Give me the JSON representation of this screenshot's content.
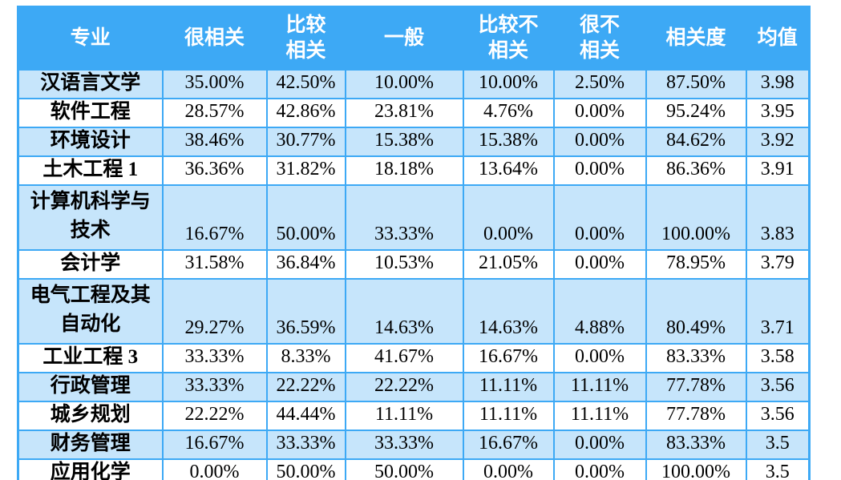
{
  "table": {
    "columns": [
      "专业",
      "很相关",
      "比较\n相关",
      "一般",
      "比较不\n相关",
      "很不\n相关",
      "相关度",
      "均值"
    ],
    "rows": [
      {
        "major": "汉语言文学",
        "values": [
          "35.00%",
          "42.50%",
          "10.00%",
          "10.00%",
          "2.50%",
          "87.50%",
          "3.98"
        ]
      },
      {
        "major": "软件工程",
        "values": [
          "28.57%",
          "42.86%",
          "23.81%",
          "4.76%",
          "0.00%",
          "95.24%",
          "3.95"
        ]
      },
      {
        "major": "环境设计",
        "values": [
          "38.46%",
          "30.77%",
          "15.38%",
          "15.38%",
          "0.00%",
          "84.62%",
          "3.92"
        ]
      },
      {
        "major": "土木工程 1",
        "values": [
          "36.36%",
          "31.82%",
          "18.18%",
          "13.64%",
          "0.00%",
          "86.36%",
          "3.91"
        ]
      },
      {
        "major": "计算机科学与技术",
        "values": [
          "16.67%",
          "50.00%",
          "33.33%",
          "0.00%",
          "0.00%",
          "100.00%",
          "3.83"
        ]
      },
      {
        "major": "会计学",
        "values": [
          "31.58%",
          "36.84%",
          "10.53%",
          "21.05%",
          "0.00%",
          "78.95%",
          "3.79"
        ]
      },
      {
        "major": "电气工程及其自动化",
        "values": [
          "29.27%",
          "36.59%",
          "14.63%",
          "14.63%",
          "4.88%",
          "80.49%",
          "3.71"
        ]
      },
      {
        "major": "工业工程 3",
        "values": [
          "33.33%",
          "8.33%",
          "41.67%",
          "16.67%",
          "0.00%",
          "83.33%",
          "3.58"
        ]
      },
      {
        "major": "行政管理",
        "values": [
          "33.33%",
          "22.22%",
          "22.22%",
          "11.11%",
          "11.11%",
          "77.78%",
          "3.56"
        ]
      },
      {
        "major": "城乡规划",
        "values": [
          "22.22%",
          "44.44%",
          "11.11%",
          "11.11%",
          "11.11%",
          "77.78%",
          "3.56"
        ]
      },
      {
        "major": "财务管理",
        "values": [
          "16.67%",
          "33.33%",
          "33.33%",
          "16.67%",
          "0.00%",
          "83.33%",
          "3.5"
        ]
      },
      {
        "major": "应用化学",
        "values": [
          "0.00%",
          "50.00%",
          "50.00%",
          "0.00%",
          "0.00%",
          "100.00%",
          "3.5"
        ]
      }
    ]
  },
  "colors": {
    "header_bg": "#3DA9F5",
    "header_text": "#FFFFFF",
    "border": "#3DA9F5",
    "row_bg": "#FFFFFF",
    "row_alt_bg": "#C6E5FB"
  },
  "chart_data": {
    "type": "table",
    "columns": [
      "专业",
      "很相关",
      "比较相关",
      "一般",
      "比较不相关",
      "很不相关",
      "相关度",
      "均值"
    ],
    "rows": [
      [
        "汉语言文学",
        "35.00%",
        "42.50%",
        "10.00%",
        "10.00%",
        "2.50%",
        "87.50%",
        "3.98"
      ],
      [
        "软件工程",
        "28.57%",
        "42.86%",
        "23.81%",
        "4.76%",
        "0.00%",
        "95.24%",
        "3.95"
      ],
      [
        "环境设计",
        "38.46%",
        "30.77%",
        "15.38%",
        "15.38%",
        "0.00%",
        "84.62%",
        "3.92"
      ],
      [
        "土木工程 1",
        "36.36%",
        "31.82%",
        "18.18%",
        "13.64%",
        "0.00%",
        "86.36%",
        "3.91"
      ],
      [
        "计算机科学与技术",
        "16.67%",
        "50.00%",
        "33.33%",
        "0.00%",
        "0.00%",
        "100.00%",
        "3.83"
      ],
      [
        "会计学",
        "31.58%",
        "36.84%",
        "10.53%",
        "21.05%",
        "0.00%",
        "78.95%",
        "3.79"
      ],
      [
        "电气工程及其自动化",
        "29.27%",
        "36.59%",
        "14.63%",
        "14.63%",
        "4.88%",
        "80.49%",
        "3.71"
      ],
      [
        "工业工程 3",
        "33.33%",
        "8.33%",
        "41.67%",
        "16.67%",
        "0.00%",
        "83.33%",
        "3.58"
      ],
      [
        "行政管理",
        "33.33%",
        "22.22%",
        "22.22%",
        "11.11%",
        "11.11%",
        "77.78%",
        "3.56"
      ],
      [
        "城乡规划",
        "22.22%",
        "44.44%",
        "11.11%",
        "11.11%",
        "11.11%",
        "77.78%",
        "3.56"
      ],
      [
        "财务管理",
        "16.67%",
        "33.33%",
        "33.33%",
        "16.67%",
        "0.00%",
        "83.33%",
        "3.5"
      ],
      [
        "应用化学",
        "0.00%",
        "50.00%",
        "50.00%",
        "0.00%",
        "0.00%",
        "100.00%",
        "3.5"
      ]
    ]
  }
}
